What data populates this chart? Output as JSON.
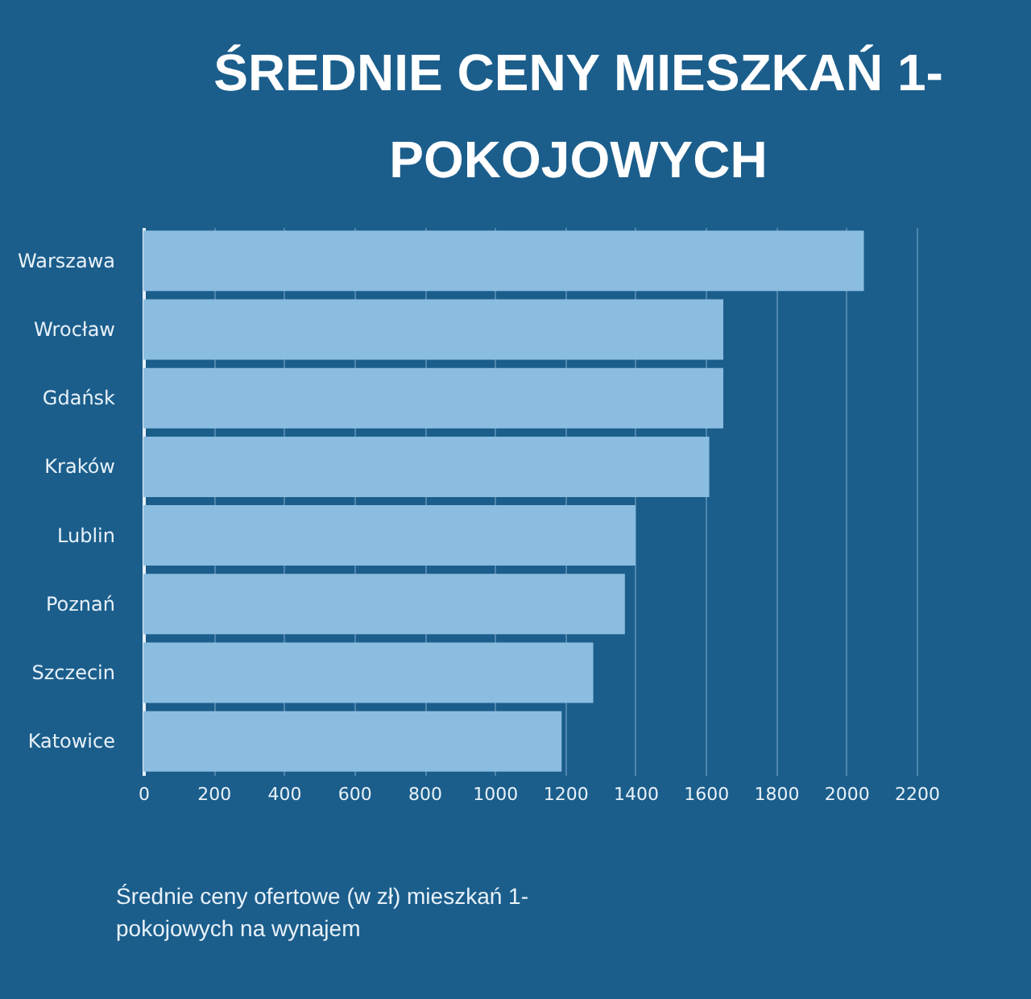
{
  "chart_data": {
    "type": "bar",
    "orientation": "horizontal",
    "title": "ŚREDNIE CENY MIESZKAŃ 1-POKOJOWYCH",
    "categories": [
      "Warszawa",
      "Wrocław",
      "Gdańsk",
      "Kraków",
      "Lublin",
      "Poznań",
      "Szczecin",
      "Katowice"
    ],
    "values": [
      2050,
      1650,
      1650,
      1610,
      1400,
      1370,
      1280,
      1190
    ],
    "color": "#8bbde0",
    "xlim": [
      0,
      2200
    ],
    "xticks": [
      0,
      200,
      400,
      600,
      800,
      1000,
      1200,
      1400,
      1600,
      1800,
      2000,
      2200
    ],
    "grid": "x",
    "annotations": [
      "Średnie ceny ofertowe (w zł) mieszkań 1-pokojowych na wynajem"
    ]
  }
}
